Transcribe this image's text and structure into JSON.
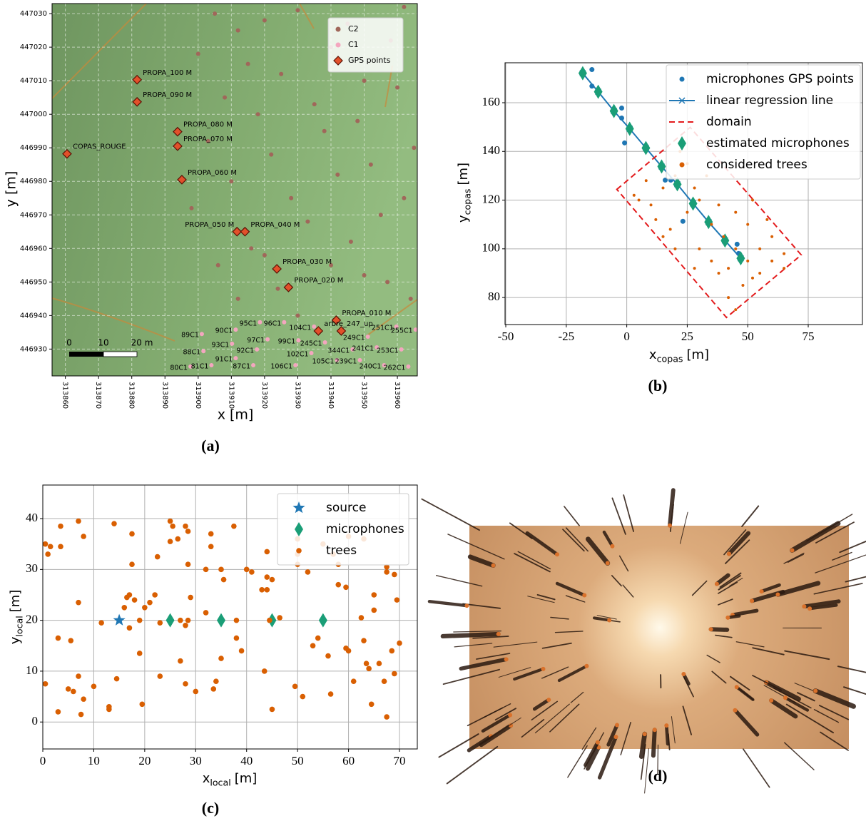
{
  "chart_data": [
    {
      "type": "scatter",
      "panel_label": "(a)",
      "xlabel": "x [m]",
      "ylabel": "y [m]",
      "xlim": [
        313856,
        313966
      ],
      "ylim": [
        446922,
        447033
      ],
      "xticks": [
        313860,
        313870,
        313880,
        313890,
        313900,
        313910,
        313920,
        313930,
        313940,
        313950,
        313960
      ],
      "yticks": [
        446930,
        446940,
        446950,
        446960,
        446970,
        446980,
        446990,
        447000,
        447010,
        447020,
        447030
      ],
      "grid": true,
      "basemap": true,
      "xtick_rotation": 90,
      "legend": "upper right",
      "scale_bar": {
        "labels": [
          "0",
          "10",
          "20 m"
        ]
      },
      "series": [
        {
          "name": "C2",
          "color": "#a0675a",
          "marker": "o",
          "x": [
            313905,
            313912,
            313920,
            313930,
            313945,
            313958,
            313962,
            313900,
            313915,
            313925,
            313940,
            313950,
            313908,
            313918,
            313935,
            313948,
            313960,
            313903,
            313922,
            313938,
            313952,
            313965,
            313910,
            313928,
            313942,
            313955,
            313898,
            313916,
            313933,
            313946,
            313962,
            313906,
            313924,
            313940,
            313957,
            313912,
            313930,
            313950,
            313964,
            313920
          ],
          "y": [
            447030,
            447025,
            447028,
            447031,
            447027,
            447022,
            447032,
            447018,
            447015,
            447012,
            447020,
            447010,
            447005,
            447000,
            447003,
            446998,
            447008,
            446992,
            446988,
            446995,
            446985,
            446990,
            446980,
            446975,
            446982,
            446970,
            446972,
            446960,
            446968,
            446962,
            446975,
            446955,
            446948,
            446955,
            446950,
            446945,
            446940,
            446952,
            446945,
            446958
          ]
        },
        {
          "name": "C1",
          "color": "#f4a6bf",
          "marker": "o",
          "x": [
            313901.1,
            313911.3,
            313918.6,
            313925.9,
            313934.9,
            313910.2,
            313920.9,
            313930.2,
            313938.2,
            313901.6,
            313917.7,
            313934.1,
            313946.5,
            313953.8,
            313961.2,
            313911.3,
            313916.6,
            313929.3,
            313941.8,
            313948.7,
            313956.0,
            313963.3,
            313897.7,
            313904.0,
            313951.1,
            313959.7,
            313965.5
          ],
          "y": [
            446934.5,
            446935.8,
            446938.0,
            446938.0,
            446936.7,
            446931.6,
            446932.9,
            446932.6,
            446932.0,
            446929.4,
            446929.9,
            446928.8,
            446929.9,
            446930.5,
            446929.9,
            446927.3,
            446925.2,
            446925.2,
            446926.7,
            446926.7,
            446925.2,
            446924.8,
            446924.8,
            446925.2,
            446933.7,
            446936.7,
            446935.8
          ],
          "labels": [
            "89C1",
            "90C1",
            "95C1",
            "96C1",
            "104C1",
            "93C1",
            "97C1",
            "99C1",
            "245C1",
            "88C1",
            "92C1",
            "102C1",
            "344C1",
            "241C1",
            "253C1",
            "91C1",
            "87C1",
            "106C1",
            "105C1",
            "239C1",
            "240C1",
            "262C1",
            "80C1",
            "81C1",
            "249C1",
            "251C1",
            "255C1"
          ]
        },
        {
          "name": "GPS points",
          "color": "#e2502a",
          "marker": "D",
          "x": [
            313881.6,
            313881.6,
            313860.5,
            313893.8,
            313893.8,
            313895.1,
            313911.7,
            313914.1,
            313923.7,
            313927.2,
            313941.6,
            313936.2,
            313943.1
          ],
          "y": [
            447010.3,
            447003.7,
            446988.2,
            446994.8,
            446990.5,
            446980.5,
            446965.0,
            446965.0,
            446953.9,
            446948.4,
            446938.6,
            446935.4,
            446935.4
          ],
          "labels": [
            "PROPA_100 M",
            "PROPA_090 M",
            "COPAS_ROUGE",
            "PROPA_080 M",
            "PROPA_070 M",
            "PROPA_060 M",
            "PROPA_050 M",
            "PROPA_040 M",
            "PROPA_030 M",
            "PROPA_020 M",
            "PROPA_010 M",
            "arbre_247_up",
            null
          ]
        }
      ]
    },
    {
      "type": "scatter",
      "panel_label": "(b)",
      "xlabel": {
        "text": "x",
        "sub": "copas",
        "unit": "[m]"
      },
      "ylabel": {
        "text": "y",
        "sub": "copas",
        "unit": "[m]"
      },
      "xlim": [
        -50.3,
        97.4
      ],
      "ylim": [
        68.9,
        176.4
      ],
      "xticks": [
        -50,
        -25,
        0,
        25,
        50,
        75
      ],
      "yticks": [
        80,
        100,
        120,
        140,
        160
      ],
      "grid": true,
      "legend": "upper right",
      "series": [
        {
          "name": "microphones GPS points",
          "color": "#1f77b4",
          "marker": "o",
          "x": [
            -14.4,
            -14.4,
            -2.1,
            -2.1,
            -0.9,
            15.9,
            18.2,
            23.2,
            45.6,
            46.2
          ],
          "y": [
            173.6,
            166.8,
            157.8,
            153.7,
            143.5,
            128.2,
            128.2,
            111.3,
            101.9,
            98.1
          ]
        },
        {
          "name": "linear regression line",
          "color": "#1f77b4",
          "marker": "x",
          "linestyle": "-",
          "x": [
            -18.2,
            -11.8,
            -5.3,
            1.2,
            7.9,
            14.4,
            20.9,
            27.4,
            33.8,
            40.6,
            47.1
          ],
          "y": [
            172.1,
            164.5,
            156.6,
            149.3,
            141.4,
            133.8,
            126.5,
            118.6,
            111.0,
            103.4,
            96.1
          ]
        },
        {
          "name": "domain",
          "color": "#e31a1c",
          "linestyle": "--",
          "closed": true,
          "x": [
            -4.1,
            26.2,
            72.1,
            41.2
          ],
          "y": [
            124.4,
            149.9,
            97.5,
            71.8
          ]
        },
        {
          "name": "estimated microphones",
          "color": "#1a9e77",
          "marker": "d",
          "x": [
            -18.2,
            -11.8,
            -5.3,
            1.2,
            7.9,
            14.4,
            20.9,
            27.4,
            33.8,
            40.6,
            47.1
          ],
          "y": [
            172.1,
            164.5,
            156.6,
            149.3,
            141.4,
            133.8,
            126.5,
            118.6,
            111.0,
            103.4,
            96.1
          ]
        },
        {
          "name": "considered trees",
          "color": "#d95f02",
          "marker": "o",
          "x": [
            5,
            10,
            15,
            20,
            25,
            22,
            12,
            18,
            25,
            30,
            35,
            40,
            45,
            50,
            55,
            60,
            65,
            55,
            48,
            42,
            45,
            38,
            30,
            28,
            35,
            20,
            15,
            50,
            45,
            38,
            60,
            58,
            52,
            33,
            28,
            8,
            3,
            65,
            52,
            42
          ],
          "y": [
            120,
            118,
            125,
            130,
            135,
            140,
            112,
            108,
            115,
            120,
            110,
            105,
            100,
            95,
            100,
            95,
            98,
            90,
            85,
            80,
            75,
            90,
            100,
            92,
            95,
            100,
            105,
            110,
            115,
            118,
            105,
            112,
            120,
            130,
            125,
            128,
            122,
            92,
            88,
            92
          ]
        }
      ]
    },
    {
      "type": "scatter",
      "panel_label": "(c)",
      "xlabel": {
        "text": "x",
        "sub": "local",
        "unit": "[m]"
      },
      "ylabel": {
        "text": "y",
        "sub": "local",
        "unit": "[m]"
      },
      "xlim": [
        0,
        73.5
      ],
      "ylim": [
        -5.3,
        46.6
      ],
      "xticks": [
        0,
        10,
        20,
        30,
        40,
        50,
        60,
        70
      ],
      "yticks": [
        0,
        10,
        20,
        30,
        40
      ],
      "grid": true,
      "legend": "upper right",
      "series": [
        {
          "name": "source",
          "color": "#1f77b4",
          "marker": "*",
          "x": [
            15
          ],
          "y": [
            20
          ]
        },
        {
          "name": "microphones",
          "color": "#1a9e77",
          "marker": "d",
          "x": [
            25,
            35,
            45,
            55
          ],
          "y": [
            20,
            20,
            20,
            20
          ]
        },
        {
          "name": "trees",
          "color": "#d95f02",
          "marker": "o",
          "x": [
            0.5,
            1,
            1.5,
            3.5,
            3.5,
            7,
            8,
            7,
            0.5,
            3,
            3,
            5,
            5.5,
            6,
            7,
            7.5,
            8,
            10,
            11.5,
            13,
            13,
            14,
            14.5,
            16,
            16.5,
            17,
            17.5,
            17.5,
            17,
            18,
            19,
            19,
            19.5,
            20,
            21,
            22,
            22.5,
            23,
            23,
            25,
            25,
            25.5,
            26.5,
            27,
            27,
            28,
            28,
            28.5,
            28,
            28.5,
            29,
            28.5,
            30,
            32,
            32,
            33,
            33,
            33.5,
            34,
            35,
            35,
            35.5,
            37.5,
            38,
            38,
            39,
            40,
            41,
            43,
            43.5,
            44,
            44,
            44,
            44.5,
            45,
            45,
            46.5,
            49.5,
            50,
            50,
            50,
            51,
            52,
            53,
            54,
            55,
            56,
            56.5,
            57,
            58,
            58,
            59.5,
            59.5,
            60,
            61,
            62.5,
            63,
            63.5,
            64,
            64.5,
            65,
            65,
            66,
            67,
            67.5,
            67.5,
            67.5,
            68.5,
            69,
            69,
            69.5,
            70,
            63,
            60
          ],
          "y": [
            35,
            33,
            34.5,
            38.5,
            34.5,
            39.5,
            36.5,
            23.5,
            7.5,
            16.5,
            2,
            6.5,
            16,
            6,
            9,
            1.5,
            4.5,
            7,
            19.5,
            2.5,
            3,
            39,
            8.5,
            22.5,
            24.5,
            18.5,
            37,
            31,
            25,
            24,
            13.5,
            20,
            3.5,
            22.5,
            23.5,
            25,
            32.5,
            9,
            19.5,
            35.5,
            39.5,
            38.5,
            36,
            20,
            12,
            19,
            38.5,
            37.5,
            7.5,
            31,
            24.5,
            20,
            6,
            30,
            21.5,
            37,
            34.5,
            6.5,
            8,
            12.5,
            30,
            28,
            38.5,
            16.5,
            20,
            14,
            30,
            29.5,
            26,
            10,
            28.5,
            33.5,
            26,
            20,
            28,
            2.5,
            20.5,
            7,
            33,
            36,
            31,
            5,
            29.5,
            15,
            16.5,
            35,
            13,
            5.5,
            33,
            27,
            31,
            26.5,
            14.5,
            14,
            8,
            20.5,
            16,
            11.5,
            10.5,
            3.5,
            25,
            22,
            11.5,
            8,
            30.5,
            29.5,
            1,
            14,
            9.5,
            29,
            24,
            15.5,
            36,
            36.5
          ]
        }
      ]
    }
  ],
  "image_panel": {
    "panel_label": "(d)"
  }
}
